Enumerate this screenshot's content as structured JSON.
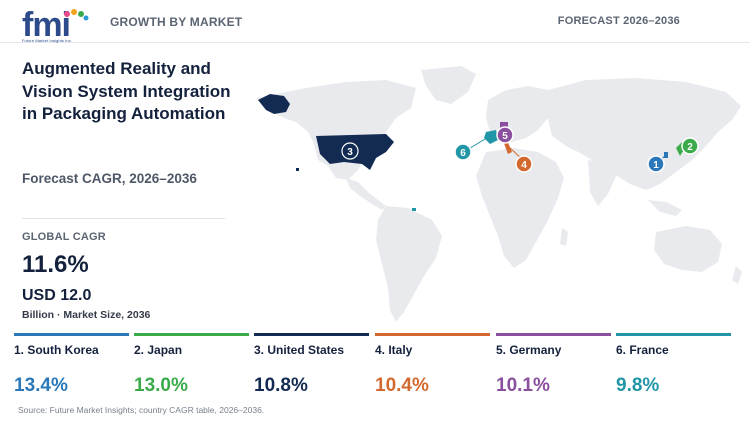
{
  "header": {
    "logo_text": "fmi",
    "logo_subtext": "Future Market Insights Inc.",
    "left_label": "GROWTH BY MARKET",
    "right_label": "FORECAST 2026–2036"
  },
  "summary": {
    "title": "Augmented Reality and Vision System Integration in Packaging Automation",
    "subtitle": "Forecast CAGR, 2026–2036",
    "global_cagr_label": "GLOBAL CAGR",
    "global_cagr_value": "11.6%",
    "market_size_value": "USD 12.0",
    "market_size_note": "Billion · Market Size, 2036"
  },
  "map": {
    "land_color": "#e8eaed",
    "markers": [
      {
        "rank": "1",
        "country": "South Korea",
        "color": "#2b78b8"
      },
      {
        "rank": "2",
        "country": "Japan",
        "color": "#3aaa4a"
      },
      {
        "rank": "3",
        "country": "United States",
        "color": "#132a52"
      },
      {
        "rank": "4",
        "country": "Italy",
        "color": "#d4692f"
      },
      {
        "rank": "5",
        "country": "Germany",
        "color": "#8a4f9e"
      },
      {
        "rank": "6",
        "country": "France",
        "color": "#2196a6"
      }
    ]
  },
  "countries": [
    {
      "label": "1. South Korea",
      "cagr": "13.4%",
      "color": "#2b78b8"
    },
    {
      "label": "2. Japan",
      "cagr": "13.0%",
      "color": "#3aaa4a"
    },
    {
      "label": "3. United States",
      "cagr": "10.8%",
      "color": "#132a52"
    },
    {
      "label": "4. Italy",
      "cagr": "10.4%",
      "color": "#d4692f"
    },
    {
      "label": "5. Germany",
      "cagr": "10.1%",
      "color": "#8a4f9e"
    },
    {
      "label": "6. France",
      "cagr": "9.8%",
      "color": "#2196a6"
    }
  ],
  "source": "Source: Future Market Insights; country CAGR table, 2026–2036."
}
